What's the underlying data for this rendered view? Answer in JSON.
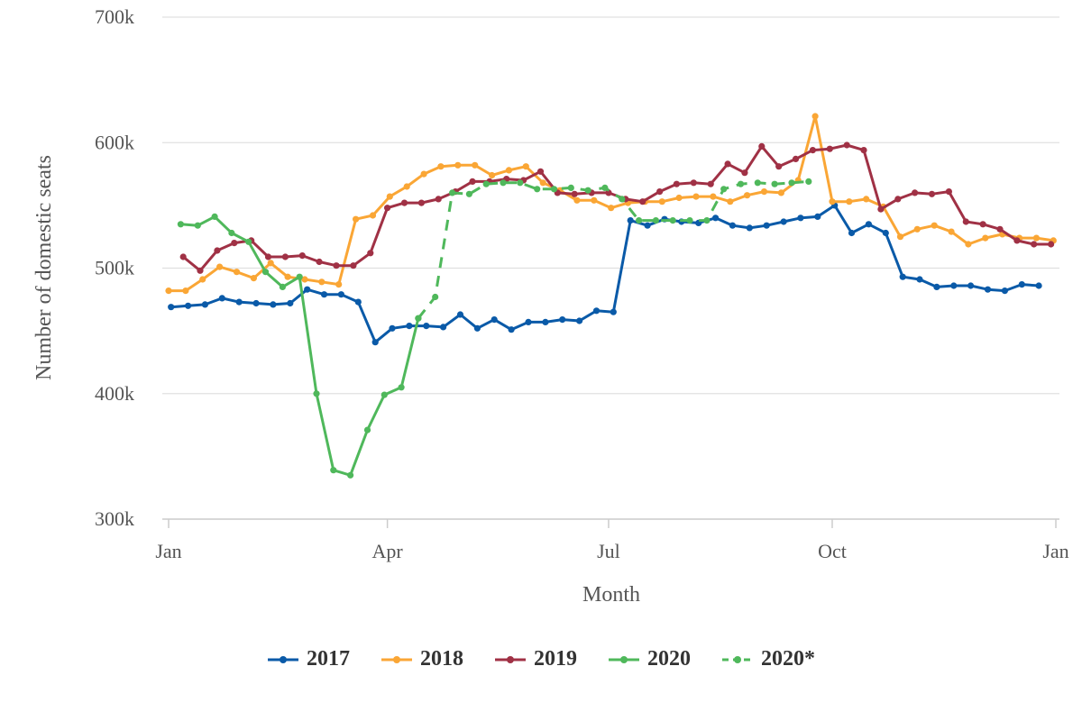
{
  "chart_data": {
    "type": "line",
    "title": "",
    "xlabel": "Month",
    "ylabel": "Number of domestic seats",
    "x_ticks": [
      "Jan",
      "Apr",
      "Jul",
      "Oct",
      "Jan"
    ],
    "y_ticks": [
      "300k",
      "400k",
      "500k",
      "600k",
      "700k"
    ],
    "ylim": [
      300000,
      700000
    ],
    "grid": "horizontal",
    "legend_position": "bottom",
    "series": [
      {
        "name": "2017",
        "color": "#0a5aa8",
        "style": "solid",
        "x": [
          "2017-01-02",
          "2017-01-09",
          "2017-01-16",
          "2017-01-23",
          "2017-01-30",
          "2017-02-06",
          "2017-02-13",
          "2017-02-20",
          "2017-02-27",
          "2017-03-06",
          "2017-03-13",
          "2017-03-20",
          "2017-03-27",
          "2017-04-03",
          "2017-04-10",
          "2017-04-17",
          "2017-04-24",
          "2017-05-01",
          "2017-05-08",
          "2017-05-15",
          "2017-05-22",
          "2017-05-29",
          "2017-06-05",
          "2017-06-12",
          "2017-06-19",
          "2017-06-26",
          "2017-07-03",
          "2017-07-10",
          "2017-07-17",
          "2017-07-24",
          "2017-07-31",
          "2017-08-07",
          "2017-08-14",
          "2017-08-21",
          "2017-08-28",
          "2017-09-04",
          "2017-09-11",
          "2017-09-18",
          "2017-09-25",
          "2017-10-02",
          "2017-10-09",
          "2017-10-16",
          "2017-10-23",
          "2017-10-30",
          "2017-11-06",
          "2017-11-13",
          "2017-11-20",
          "2017-11-27",
          "2017-12-04",
          "2017-12-11",
          "2017-12-18",
          "2017-12-25"
        ],
        "values": [
          469000,
          470000,
          471000,
          476000,
          473000,
          472000,
          471000,
          472000,
          483000,
          479000,
          479000,
          473000,
          441000,
          452000,
          454000,
          454000,
          453000,
          463000,
          452000,
          459000,
          451000,
          457000,
          457000,
          459000,
          458000,
          466000,
          465000,
          538000,
          534000,
          539000,
          537000,
          536000,
          540000,
          534000,
          532000,
          534000,
          537000,
          540000,
          541000,
          550000,
          528000,
          535000,
          528000,
          493000,
          491000,
          485000,
          486000,
          486000,
          483000,
          482000,
          487000,
          486000
        ]
      },
      {
        "name": "2018",
        "color": "#faa635",
        "style": "solid",
        "x": [
          "2018-01-01",
          "2018-01-08",
          "2018-01-15",
          "2018-01-22",
          "2018-01-29",
          "2018-02-05",
          "2018-02-12",
          "2018-02-19",
          "2018-02-26",
          "2018-03-05",
          "2018-03-12",
          "2018-03-19",
          "2018-03-26",
          "2018-04-02",
          "2018-04-09",
          "2018-04-16",
          "2018-04-23",
          "2018-04-30",
          "2018-05-07",
          "2018-05-14",
          "2018-05-21",
          "2018-05-28",
          "2018-06-04",
          "2018-06-11",
          "2018-06-18",
          "2018-06-25",
          "2018-07-02",
          "2018-07-09",
          "2018-07-16",
          "2018-07-23",
          "2018-07-30",
          "2018-08-06",
          "2018-08-13",
          "2018-08-20",
          "2018-08-27",
          "2018-09-03",
          "2018-09-10",
          "2018-09-17",
          "2018-09-24",
          "2018-10-01",
          "2018-10-08",
          "2018-10-15",
          "2018-10-22",
          "2018-10-29",
          "2018-11-05",
          "2018-11-12",
          "2018-11-19",
          "2018-11-26",
          "2018-12-03",
          "2018-12-10",
          "2018-12-17",
          "2018-12-24",
          "2018-12-31"
        ],
        "values": [
          482000,
          482000,
          491000,
          501000,
          497000,
          492000,
          504000,
          493000,
          491000,
          489000,
          487000,
          539000,
          542000,
          557000,
          565000,
          575000,
          581000,
          582000,
          582000,
          574000,
          578000,
          581000,
          568000,
          562000,
          554000,
          554000,
          548000,
          552000,
          553000,
          553000,
          556000,
          557000,
          557000,
          553000,
          558000,
          561000,
          560000,
          570000,
          621000,
          553000,
          553000,
          555000,
          549000,
          525000,
          531000,
          534000,
          529000,
          519000,
          524000,
          527000,
          524000,
          524000,
          522000
        ]
      },
      {
        "name": "2019",
        "color": "#a03145",
        "style": "solid",
        "x": [
          "2019-01-07",
          "2019-01-14",
          "2019-01-21",
          "2019-01-28",
          "2019-02-04",
          "2019-02-11",
          "2019-02-18",
          "2019-02-25",
          "2019-03-04",
          "2019-03-11",
          "2019-03-18",
          "2019-03-25",
          "2019-04-01",
          "2019-04-08",
          "2019-04-15",
          "2019-04-22",
          "2019-04-29",
          "2019-05-06",
          "2019-05-13",
          "2019-05-20",
          "2019-05-27",
          "2019-06-03",
          "2019-06-10",
          "2019-06-17",
          "2019-06-24",
          "2019-07-01",
          "2019-07-08",
          "2019-07-15",
          "2019-07-22",
          "2019-07-29",
          "2019-08-05",
          "2019-08-12",
          "2019-08-19",
          "2019-08-26",
          "2019-09-02",
          "2019-09-09",
          "2019-09-16",
          "2019-09-23",
          "2019-09-30",
          "2019-10-07",
          "2019-10-14",
          "2019-10-21",
          "2019-10-28",
          "2019-11-04",
          "2019-11-11",
          "2019-11-18",
          "2019-11-25",
          "2019-12-02",
          "2019-12-09",
          "2019-12-16",
          "2019-12-23",
          "2019-12-30"
        ],
        "values": [
          509000,
          498000,
          514000,
          520000,
          522000,
          509000,
          509000,
          510000,
          505000,
          502000,
          502000,
          512000,
          548000,
          552000,
          552000,
          555000,
          561000,
          569000,
          569000,
          571000,
          570000,
          577000,
          560000,
          559000,
          560000,
          560000,
          555000,
          553000,
          561000,
          567000,
          568000,
          567000,
          583000,
          576000,
          597000,
          581000,
          587000,
          594000,
          595000,
          598000,
          594000,
          547000,
          555000,
          560000,
          559000,
          561000,
          537000,
          535000,
          531000,
          522000,
          519000,
          519000
        ]
      },
      {
        "name": "2020",
        "color": "#4fb85b",
        "style": "solid",
        "x": [
          "2020-01-06",
          "2020-01-13",
          "2020-01-20",
          "2020-01-27",
          "2020-02-03",
          "2020-02-10",
          "2020-02-17",
          "2020-02-24",
          "2020-03-02",
          "2020-03-09",
          "2020-03-16",
          "2020-03-23",
          "2020-03-30",
          "2020-04-06",
          "2020-04-13"
        ],
        "values": [
          535000,
          534000,
          541000,
          528000,
          521000,
          497000,
          485000,
          493000,
          400000,
          339000,
          335000,
          371000,
          399000,
          405000,
          460000
        ]
      },
      {
        "name": "2020*",
        "color": "#4fb85b",
        "style": "dashed",
        "x": [
          "2020-04-13",
          "2020-04-20",
          "2020-04-27",
          "2020-05-04",
          "2020-05-11",
          "2020-05-18",
          "2020-05-25",
          "2020-06-01",
          "2020-06-08",
          "2020-06-15",
          "2020-06-22",
          "2020-06-29",
          "2020-07-06",
          "2020-07-13",
          "2020-07-20",
          "2020-07-27",
          "2020-08-03",
          "2020-08-10",
          "2020-08-17",
          "2020-08-24",
          "2020-08-31",
          "2020-09-07",
          "2020-09-14",
          "2020-09-21"
        ],
        "values": [
          460000,
          477000,
          560000,
          559000,
          567000,
          568000,
          568000,
          563000,
          563000,
          564000,
          562000,
          564000,
          555000,
          538000,
          538000,
          538000,
          538000,
          538000,
          563000,
          567000,
          568000,
          567000,
          568000,
          569000
        ]
      }
    ]
  }
}
